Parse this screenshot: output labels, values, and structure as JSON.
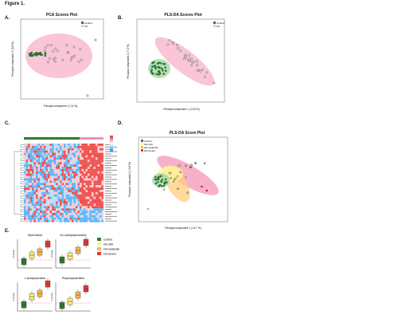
{
  "figure": {
    "title": "Figure 1."
  },
  "panels": {
    "A": {
      "letter": "A.",
      "title": "PCA Scores Plot",
      "xlabel": "Principal component 1 ( 14 %)",
      "ylabel": "Principal component 2 ( 8.6 %)",
      "legend": [
        "Control",
        "HS"
      ]
    },
    "B": {
      "letter": "B.",
      "title": "PLS-DA Scores Plot",
      "xlabel": "Principal component 1 ( 13.8 %)",
      "ylabel": "Principal component 2 ( 7.2 %)",
      "legend": [
        "Control",
        "HS"
      ]
    },
    "C": {
      "letter": "C."
    },
    "D": {
      "letter": "D.",
      "title": "PLS-DA Score Plot",
      "xlabel": "Principal component 1 ( 14.7 %)",
      "ylabel": "Principal component 2 ( 3.8 %)",
      "legend": [
        "Control",
        "HS-mild",
        "HS-moderate",
        "HS-severe"
      ]
    },
    "E": {
      "letter": "E.",
      "boxplots": [
        {
          "title": "Spermidine",
          "ylabel": "Z-score"
        },
        {
          "title": "N1-Acetylspermidine",
          "ylabel": "Z-score"
        },
        {
          "title": "L-Acetylcarnitine",
          "ylabel": "Z-score"
        },
        {
          "title": "Propionylcarnitine",
          "ylabel": "Z-score"
        }
      ],
      "legend": [
        "Control",
        "HS-mild",
        "HS-moderate",
        "HS-severe"
      ]
    }
  },
  "colors": {
    "control": "#2e7d32",
    "hs": "#f8bbd0",
    "hs_edge": "#c2185b",
    "mild": "#fff176",
    "moderate": "#ffb74d",
    "severe": "#e53935"
  },
  "chart_data": [
    {
      "type": "scatter",
      "panel": "A"
    },
    {
      "type": "scatter",
      "panel": "B"
    },
    {
      "type": "heatmap",
      "panel": "C"
    },
    {
      "type": "scatter",
      "panel": "D"
    },
    {
      "type": "bar",
      "panel": "E"
    }
  ]
}
